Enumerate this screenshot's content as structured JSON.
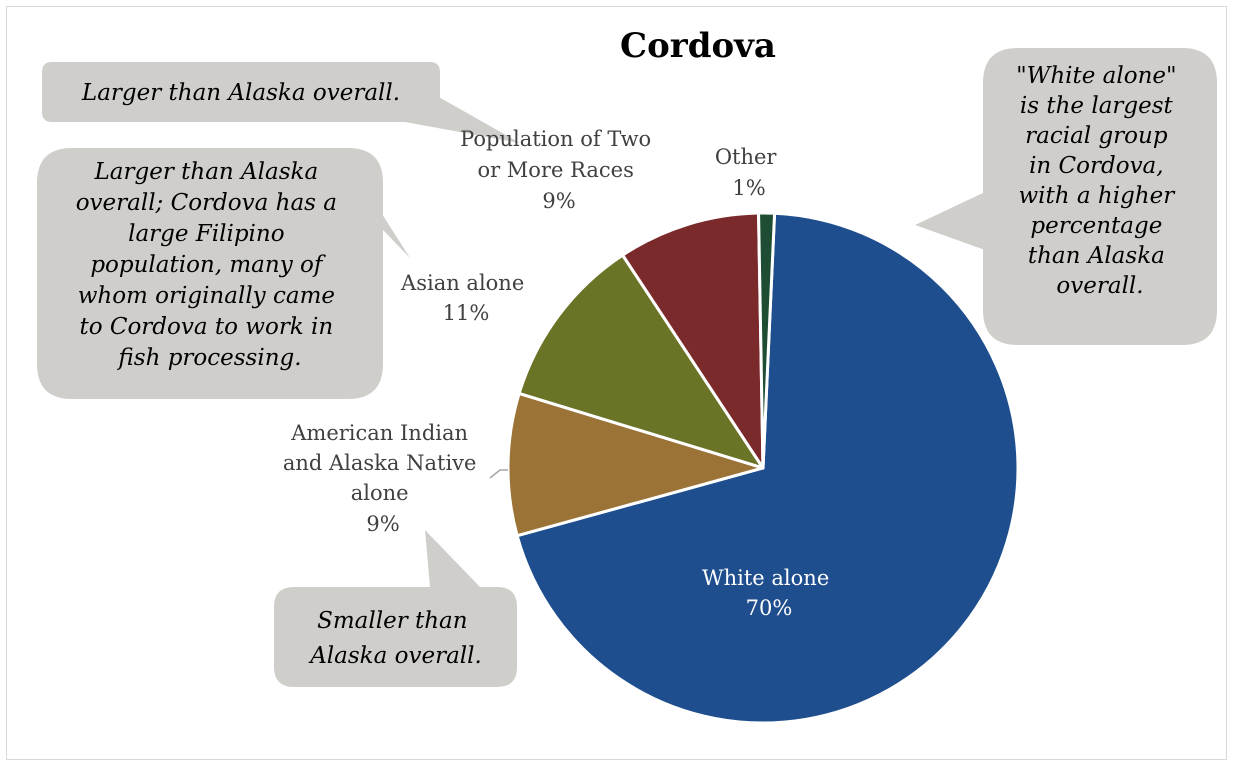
{
  "chart_data": {
    "type": "pie",
    "title": "Cordova",
    "slices": [
      {
        "name": "White alone",
        "value": 70,
        "label": "70%",
        "color": "#1f4e8e"
      },
      {
        "name": "American Indian and Alaska Native alone",
        "value": 9,
        "label": "9%",
        "color": "#9b7337"
      },
      {
        "name": "Asian alone",
        "value": 11,
        "label": "11%",
        "color": "#6b7327"
      },
      {
        "name": "Population of Two or More Races",
        "value": 9,
        "label": "9%",
        "color": "#7b2a2c"
      },
      {
        "name": "Other",
        "value": 1,
        "label": "1%",
        "color": "#1e4d33"
      }
    ],
    "slice_label_lines": {
      "white": [
        "White alone",
        "70%"
      ],
      "aian": [
        "American Indian",
        "and Alaska Native",
        "alone",
        "9%"
      ],
      "asian": [
        "Asian alone",
        "11%"
      ],
      "two": [
        "Population of Two",
        "or More Races",
        "9%"
      ],
      "other": [
        "Other",
        "1%"
      ]
    },
    "legend": "none"
  },
  "callouts": {
    "two_or_more": [
      "Larger than Alaska overall."
    ],
    "asian": [
      "Larger than Alaska",
      "overall; Cordova has a",
      "large Filipino",
      "population, many of",
      "whom originally came",
      "to Cordova to work in",
      "fish processing."
    ],
    "white": [
      "\"White alone\"",
      "is the largest",
      "racial group",
      "in Cordova,",
      "with a higher",
      "percentage",
      "than Alaska",
      "overall."
    ],
    "aian": [
      "Smaller than",
      "Alaska overall."
    ]
  }
}
